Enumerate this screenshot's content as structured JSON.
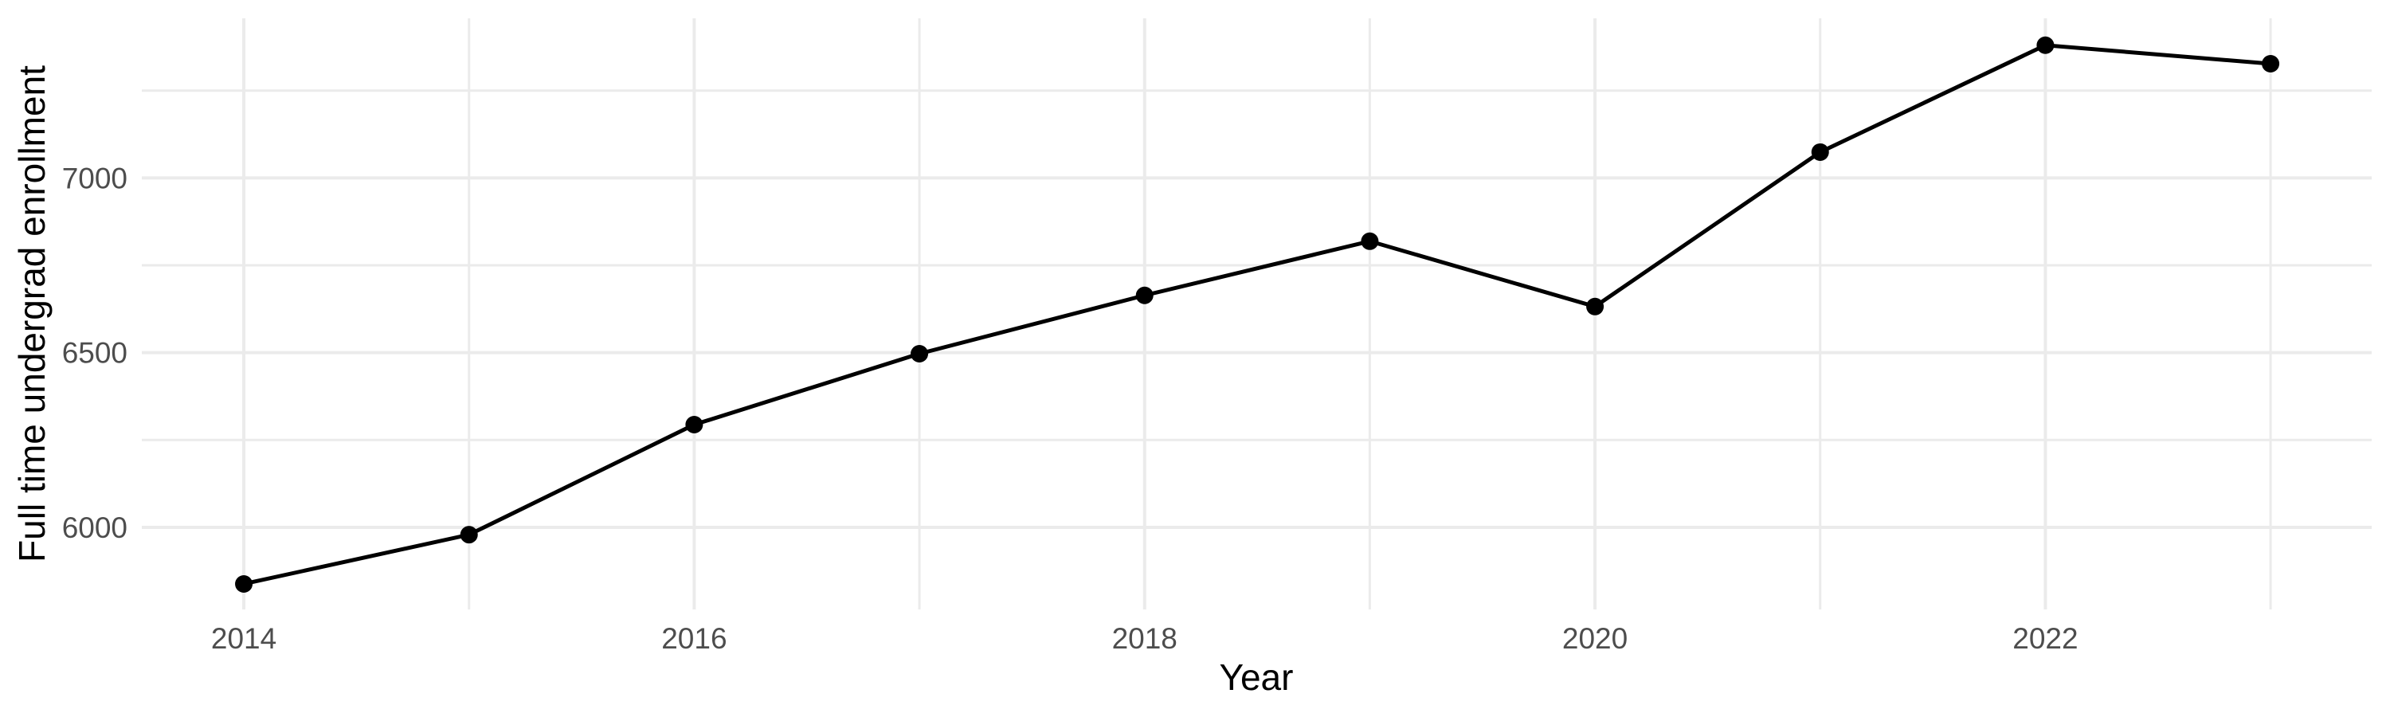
{
  "chart_data": {
    "type": "line",
    "title": "",
    "xlabel": "Year",
    "ylabel": "Full time undergrad enrollment",
    "x": [
      2014,
      2015,
      2016,
      2017,
      2018,
      2019,
      2020,
      2021,
      2022,
      2023
    ],
    "series": [
      {
        "name": "Full time undergrad enrollment",
        "values": [
          5838,
          5979,
          6294,
          6497,
          6664,
          6819,
          6632,
          7074,
          7380,
          7327
        ]
      }
    ],
    "x_ticks": [
      2014,
      2016,
      2018,
      2020,
      2022
    ],
    "x_tick_labels": [
      "2014",
      "2016",
      "2018",
      "2020",
      "2022"
    ],
    "x_minor_ticks": [
      2015,
      2017,
      2019,
      2021,
      2023
    ],
    "y_ticks": [
      6000,
      6500,
      7000
    ],
    "y_tick_labels": [
      "6000",
      "6500",
      "7000"
    ],
    "y_minor_ticks": [
      6250,
      6750,
      7250
    ],
    "xlim": [
      2013.547,
      2023.449
    ],
    "ylim": [
      5765,
      7457
    ],
    "grid": true,
    "legend_position": "none",
    "colors": {
      "line": "#000000",
      "point": "#000000",
      "grid_major": "#ebebeb",
      "grid_minor": "#ebebeb",
      "tick_label": "#4d4d4d",
      "axis_title": "#000000",
      "background": "#ffffff"
    }
  }
}
